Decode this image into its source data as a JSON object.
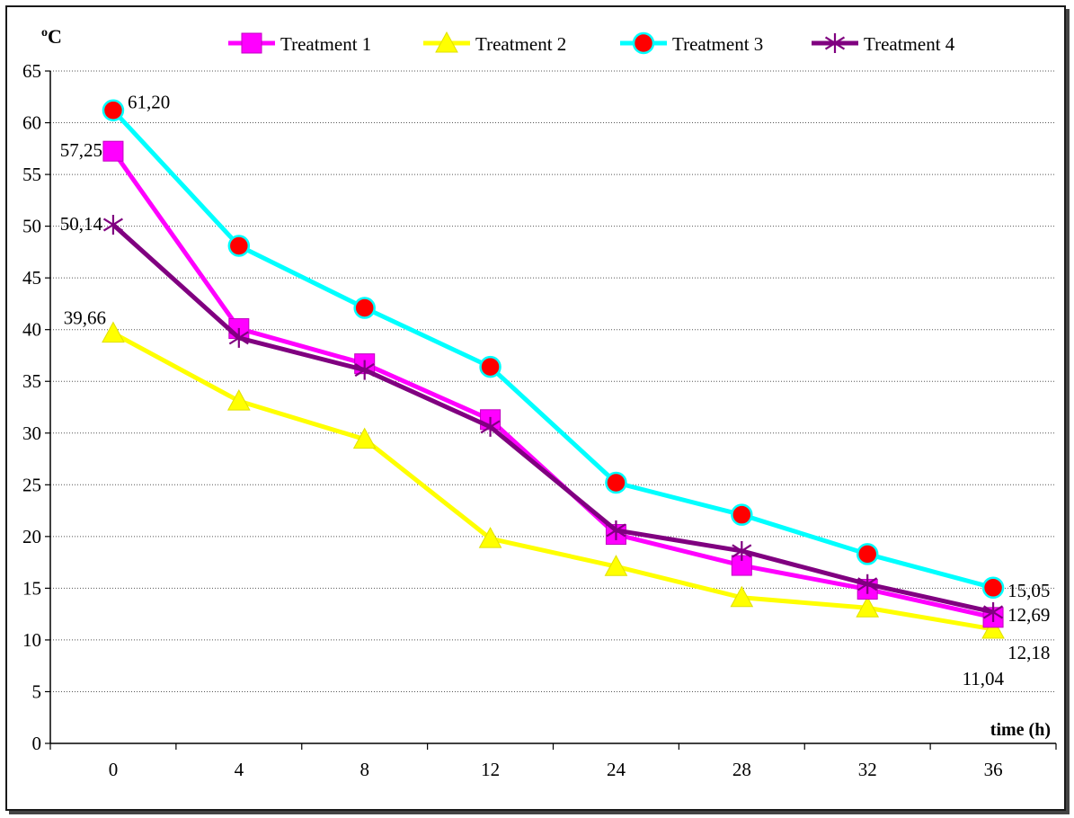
{
  "chart_data": {
    "type": "line",
    "title": "",
    "ylabel": "°C",
    "ylabel_sup": "o",
    "ylabel_main": "C",
    "xlabel": "time (h)",
    "categories": [
      "0",
      "4",
      "8",
      "12",
      "24",
      "28",
      "32",
      "36"
    ],
    "ylim": [
      0,
      65
    ],
    "yticks": [
      "0",
      "5",
      "10",
      "15",
      "20",
      "25",
      "30",
      "35",
      "40",
      "45",
      "50",
      "55",
      "60",
      "65"
    ],
    "grid": "horizontal dotted",
    "legend_position": "top",
    "series": [
      {
        "name": "Treatment 1",
        "color": "#ff00ff",
        "marker": "square",
        "values": [
          57.25,
          40.1,
          36.7,
          31.3,
          20.2,
          17.2,
          14.9,
          12.18
        ]
      },
      {
        "name": "Treatment 2",
        "color": "#ffff00",
        "marker": "triangle",
        "values": [
          39.66,
          33.1,
          29.4,
          19.8,
          17.1,
          14.1,
          13.1,
          11.04
        ]
      },
      {
        "name": "Treatment 3",
        "color": "#00ffff",
        "marker": "circle",
        "marker_fill": "#ff0000",
        "values": [
          61.2,
          48.1,
          42.1,
          36.4,
          25.2,
          22.1,
          18.3,
          15.05
        ]
      },
      {
        "name": "Treatment 4",
        "color": "#800080",
        "marker": "star",
        "values": [
          50.14,
          39.2,
          36.1,
          30.6,
          20.6,
          18.6,
          15.4,
          12.69
        ]
      }
    ],
    "annotations": [
      {
        "text": "61,20",
        "series": 2,
        "index": 0,
        "pos": "right-above"
      },
      {
        "text": "57,25",
        "series": 0,
        "index": 0,
        "pos": "left"
      },
      {
        "text": "50,14",
        "series": 3,
        "index": 0,
        "pos": "left"
      },
      {
        "text": "39,66",
        "series": 1,
        "index": 0,
        "pos": "left-above"
      },
      {
        "text": "15,05",
        "series": 2,
        "index": 7,
        "pos": "right"
      },
      {
        "text": "12,69",
        "series": 3,
        "index": 7,
        "pos": "right"
      },
      {
        "text": "12,18",
        "series": 0,
        "index": 7,
        "pos": "right-below"
      },
      {
        "text": "11,04",
        "series": 1,
        "index": 7,
        "pos": "below-left"
      }
    ]
  }
}
